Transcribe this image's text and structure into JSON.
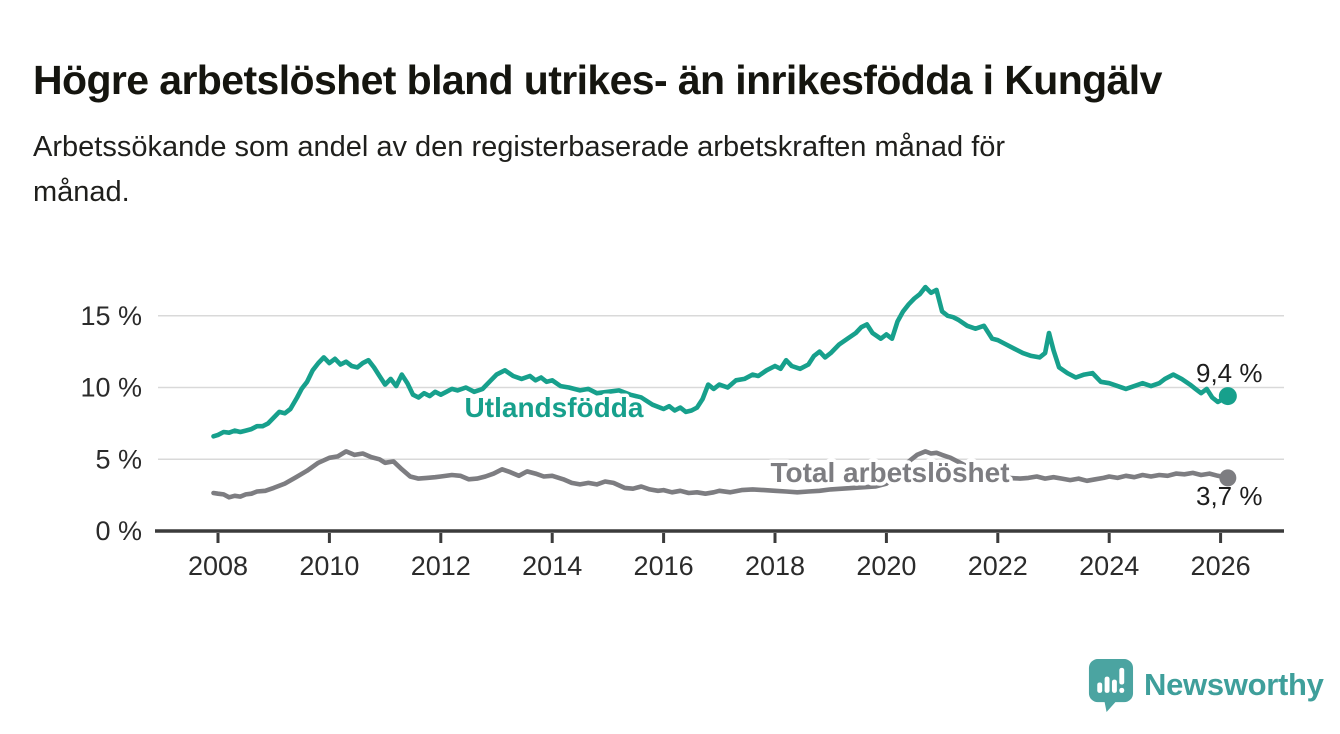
{
  "header": {
    "title": "Högre arbetslöshet bland utrikes- än inrikesfödda i Kungälv",
    "subtitle_lines": [
      "Arbetssökande som andel av den registerbaserade arbetskraften månad för",
      "månad."
    ]
  },
  "branding": {
    "logo_text": "Newsworthy",
    "logo_icon": "bar-chart-speech-bubble-icon",
    "logo_text_color": "#3f9f9b",
    "logo_icon_color": "#4ba4a1"
  },
  "colors": {
    "series_foreign_born": "#17a08c",
    "series_total": "#7d7d81",
    "gridline": "#d9d9d9",
    "axis": "#3b3b3b",
    "tick_label": "#2b2b2b",
    "value_label": "#1d1d1d"
  },
  "chart_data": {
    "type": "line",
    "title": "",
    "xlabel": "",
    "ylabel": "",
    "grid": true,
    "legend": "inline-labels",
    "x_ticks": [
      2008,
      2010,
      2012,
      2014,
      2016,
      2018,
      2020,
      2022,
      2024,
      2026
    ],
    "y_ticks": [
      0,
      5,
      10,
      15
    ],
    "y_tick_suffix": " %",
    "ylim": [
      0,
      17.8
    ],
    "xlim": [
      2006.9,
      2027.1
    ],
    "series": [
      {
        "name": "Utlandsfödda",
        "color": "#17a08c",
        "end_value_label": "9,4 %",
        "end_value": 9.4,
        "points": [
          [
            2007.92,
            6.6
          ],
          [
            2008.0,
            6.7
          ],
          [
            2008.1,
            6.9
          ],
          [
            2008.2,
            6.85
          ],
          [
            2008.3,
            7.0
          ],
          [
            2008.4,
            6.9
          ],
          [
            2008.5,
            7.0
          ],
          [
            2008.6,
            7.1
          ],
          [
            2008.7,
            7.3
          ],
          [
            2008.8,
            7.3
          ],
          [
            2008.9,
            7.5
          ],
          [
            2009.0,
            7.9
          ],
          [
            2009.1,
            8.3
          ],
          [
            2009.2,
            8.2
          ],
          [
            2009.3,
            8.5
          ],
          [
            2009.42,
            9.3
          ],
          [
            2009.5,
            9.9
          ],
          [
            2009.6,
            10.4
          ],
          [
            2009.7,
            11.2
          ],
          [
            2009.8,
            11.7
          ],
          [
            2009.9,
            12.1
          ],
          [
            2010.0,
            11.7
          ],
          [
            2010.1,
            12.0
          ],
          [
            2010.2,
            11.6
          ],
          [
            2010.3,
            11.8
          ],
          [
            2010.4,
            11.5
          ],
          [
            2010.5,
            11.4
          ],
          [
            2010.6,
            11.7
          ],
          [
            2010.7,
            11.9
          ],
          [
            2010.8,
            11.4
          ],
          [
            2010.9,
            10.8
          ],
          [
            2011.0,
            10.2
          ],
          [
            2011.1,
            10.6
          ],
          [
            2011.2,
            10.1
          ],
          [
            2011.3,
            10.9
          ],
          [
            2011.4,
            10.3
          ],
          [
            2011.5,
            9.5
          ],
          [
            2011.6,
            9.3
          ],
          [
            2011.7,
            9.6
          ],
          [
            2011.8,
            9.4
          ],
          [
            2011.9,
            9.7
          ],
          [
            2012.0,
            9.5
          ],
          [
            2012.1,
            9.7
          ],
          [
            2012.2,
            9.9
          ],
          [
            2012.3,
            9.8
          ],
          [
            2012.45,
            10.0
          ],
          [
            2012.6,
            9.7
          ],
          [
            2012.75,
            9.9
          ],
          [
            2012.9,
            10.5
          ],
          [
            2013.0,
            10.9
          ],
          [
            2013.15,
            11.2
          ],
          [
            2013.3,
            10.8
          ],
          [
            2013.45,
            10.6
          ],
          [
            2013.6,
            10.8
          ],
          [
            2013.7,
            10.5
          ],
          [
            2013.8,
            10.7
          ],
          [
            2013.9,
            10.4
          ],
          [
            2014.0,
            10.5
          ],
          [
            2014.15,
            10.1
          ],
          [
            2014.3,
            10.0
          ],
          [
            2014.5,
            9.8
          ],
          [
            2014.65,
            9.9
          ],
          [
            2014.8,
            9.6
          ],
          [
            2015.0,
            9.7
          ],
          [
            2015.2,
            9.8
          ],
          [
            2015.4,
            9.5
          ],
          [
            2015.6,
            9.3
          ],
          [
            2015.8,
            8.8
          ],
          [
            2016.0,
            8.5
          ],
          [
            2016.1,
            8.7
          ],
          [
            2016.2,
            8.4
          ],
          [
            2016.3,
            8.6
          ],
          [
            2016.4,
            8.3
          ],
          [
            2016.5,
            8.4
          ],
          [
            2016.6,
            8.6
          ],
          [
            2016.7,
            9.2
          ],
          [
            2016.8,
            10.2
          ],
          [
            2016.9,
            9.9
          ],
          [
            2017.0,
            10.2
          ],
          [
            2017.15,
            10.0
          ],
          [
            2017.3,
            10.5
          ],
          [
            2017.45,
            10.6
          ],
          [
            2017.6,
            10.9
          ],
          [
            2017.7,
            10.8
          ],
          [
            2017.85,
            11.2
          ],
          [
            2018.0,
            11.5
          ],
          [
            2018.1,
            11.3
          ],
          [
            2018.2,
            11.9
          ],
          [
            2018.3,
            11.5
          ],
          [
            2018.45,
            11.3
          ],
          [
            2018.6,
            11.6
          ],
          [
            2018.7,
            12.2
          ],
          [
            2018.8,
            12.5
          ],
          [
            2018.9,
            12.1
          ],
          [
            2019.0,
            12.4
          ],
          [
            2019.15,
            13.0
          ],
          [
            2019.3,
            13.4
          ],
          [
            2019.45,
            13.8
          ],
          [
            2019.55,
            14.2
          ],
          [
            2019.65,
            14.4
          ],
          [
            2019.75,
            13.8
          ],
          [
            2019.9,
            13.4
          ],
          [
            2020.0,
            13.7
          ],
          [
            2020.1,
            13.4
          ],
          [
            2020.2,
            14.6
          ],
          [
            2020.3,
            15.3
          ],
          [
            2020.4,
            15.8
          ],
          [
            2020.5,
            16.2
          ],
          [
            2020.6,
            16.5
          ],
          [
            2020.7,
            17.0
          ],
          [
            2020.8,
            16.6
          ],
          [
            2020.9,
            16.8
          ],
          [
            2021.0,
            15.3
          ],
          [
            2021.1,
            15.0
          ],
          [
            2021.2,
            14.9
          ],
          [
            2021.3,
            14.7
          ],
          [
            2021.45,
            14.3
          ],
          [
            2021.6,
            14.1
          ],
          [
            2021.75,
            14.3
          ],
          [
            2021.9,
            13.4
          ],
          [
            2022.0,
            13.3
          ],
          [
            2022.15,
            13.0
          ],
          [
            2022.3,
            12.7
          ],
          [
            2022.45,
            12.4
          ],
          [
            2022.6,
            12.2
          ],
          [
            2022.75,
            12.1
          ],
          [
            2022.85,
            12.4
          ],
          [
            2022.92,
            13.8
          ],
          [
            2023.0,
            12.6
          ],
          [
            2023.1,
            11.4
          ],
          [
            2023.25,
            11.0
          ],
          [
            2023.4,
            10.7
          ],
          [
            2023.55,
            10.9
          ],
          [
            2023.7,
            11.0
          ],
          [
            2023.85,
            10.4
          ],
          [
            2024.0,
            10.3
          ],
          [
            2024.15,
            10.1
          ],
          [
            2024.3,
            9.9
          ],
          [
            2024.45,
            10.1
          ],
          [
            2024.6,
            10.3
          ],
          [
            2024.75,
            10.1
          ],
          [
            2024.9,
            10.3
          ],
          [
            2025.0,
            10.6
          ],
          [
            2025.15,
            10.9
          ],
          [
            2025.3,
            10.6
          ],
          [
            2025.45,
            10.2
          ],
          [
            2025.55,
            9.9
          ],
          [
            2025.65,
            9.6
          ],
          [
            2025.75,
            9.9
          ],
          [
            2025.85,
            9.3
          ],
          [
            2025.95,
            9.0
          ],
          [
            2026.05,
            9.2
          ],
          [
            2026.13,
            9.4
          ]
        ]
      },
      {
        "name": "Total arbetslöshet",
        "color": "#7d7d81",
        "end_value_label": "3,7 %",
        "end_value": 3.7,
        "points": [
          [
            2007.92,
            2.65
          ],
          [
            2008.0,
            2.6
          ],
          [
            2008.1,
            2.55
          ],
          [
            2008.2,
            2.35
          ],
          [
            2008.3,
            2.45
          ],
          [
            2008.4,
            2.4
          ],
          [
            2008.5,
            2.55
          ],
          [
            2008.6,
            2.6
          ],
          [
            2008.7,
            2.75
          ],
          [
            2008.85,
            2.8
          ],
          [
            2009.0,
            3.0
          ],
          [
            2009.2,
            3.3
          ],
          [
            2009.4,
            3.75
          ],
          [
            2009.6,
            4.2
          ],
          [
            2009.8,
            4.75
          ],
          [
            2010.0,
            5.1
          ],
          [
            2010.15,
            5.2
          ],
          [
            2010.3,
            5.55
          ],
          [
            2010.45,
            5.3
          ],
          [
            2010.6,
            5.4
          ],
          [
            2010.75,
            5.15
          ],
          [
            2010.9,
            5.0
          ],
          [
            2011.0,
            4.75
          ],
          [
            2011.15,
            4.85
          ],
          [
            2011.3,
            4.3
          ],
          [
            2011.45,
            3.8
          ],
          [
            2011.6,
            3.65
          ],
          [
            2011.75,
            3.7
          ],
          [
            2011.9,
            3.75
          ],
          [
            2012.0,
            3.8
          ],
          [
            2012.2,
            3.9
          ],
          [
            2012.35,
            3.85
          ],
          [
            2012.5,
            3.6
          ],
          [
            2012.65,
            3.65
          ],
          [
            2012.8,
            3.8
          ],
          [
            2012.95,
            4.0
          ],
          [
            2013.1,
            4.3
          ],
          [
            2013.25,
            4.1
          ],
          [
            2013.4,
            3.85
          ],
          [
            2013.55,
            4.15
          ],
          [
            2013.7,
            4.0
          ],
          [
            2013.85,
            3.8
          ],
          [
            2014.0,
            3.85
          ],
          [
            2014.2,
            3.6
          ],
          [
            2014.35,
            3.35
          ],
          [
            2014.5,
            3.25
          ],
          [
            2014.65,
            3.35
          ],
          [
            2014.8,
            3.25
          ],
          [
            2014.95,
            3.45
          ],
          [
            2015.1,
            3.35
          ],
          [
            2015.3,
            3.0
          ],
          [
            2015.45,
            2.95
          ],
          [
            2015.6,
            3.1
          ],
          [
            2015.75,
            2.9
          ],
          [
            2015.9,
            2.8
          ],
          [
            2016.0,
            2.85
          ],
          [
            2016.15,
            2.7
          ],
          [
            2016.3,
            2.8
          ],
          [
            2016.45,
            2.65
          ],
          [
            2016.6,
            2.7
          ],
          [
            2016.75,
            2.6
          ],
          [
            2016.9,
            2.7
          ],
          [
            2017.0,
            2.8
          ],
          [
            2017.2,
            2.7
          ],
          [
            2017.4,
            2.85
          ],
          [
            2017.6,
            2.9
          ],
          [
            2017.8,
            2.85
          ],
          [
            2018.0,
            2.8
          ],
          [
            2018.2,
            2.75
          ],
          [
            2018.4,
            2.7
          ],
          [
            2018.6,
            2.75
          ],
          [
            2018.8,
            2.8
          ],
          [
            2019.0,
            2.9
          ],
          [
            2019.2,
            2.95
          ],
          [
            2019.4,
            3.0
          ],
          [
            2019.6,
            3.05
          ],
          [
            2019.8,
            3.1
          ],
          [
            2020.0,
            3.3
          ],
          [
            2020.15,
            3.9
          ],
          [
            2020.3,
            4.5
          ],
          [
            2020.45,
            5.0
          ],
          [
            2020.55,
            5.3
          ],
          [
            2020.7,
            5.55
          ],
          [
            2020.8,
            5.4
          ],
          [
            2020.9,
            5.45
          ],
          [
            2021.0,
            5.3
          ],
          [
            2021.15,
            5.1
          ],
          [
            2021.3,
            4.8
          ],
          [
            2021.5,
            4.4
          ],
          [
            2021.7,
            4.1
          ],
          [
            2021.85,
            3.95
          ],
          [
            2022.0,
            3.8
          ],
          [
            2022.2,
            3.7
          ],
          [
            2022.4,
            3.65
          ],
          [
            2022.55,
            3.7
          ],
          [
            2022.7,
            3.8
          ],
          [
            2022.85,
            3.65
          ],
          [
            2023.0,
            3.75
          ],
          [
            2023.15,
            3.65
          ],
          [
            2023.3,
            3.55
          ],
          [
            2023.45,
            3.65
          ],
          [
            2023.6,
            3.5
          ],
          [
            2023.75,
            3.6
          ],
          [
            2023.9,
            3.7
          ],
          [
            2024.0,
            3.8
          ],
          [
            2024.15,
            3.7
          ],
          [
            2024.3,
            3.85
          ],
          [
            2024.45,
            3.75
          ],
          [
            2024.6,
            3.9
          ],
          [
            2024.75,
            3.8
          ],
          [
            2024.9,
            3.9
          ],
          [
            2025.05,
            3.85
          ],
          [
            2025.2,
            4.0
          ],
          [
            2025.35,
            3.95
          ],
          [
            2025.5,
            4.05
          ],
          [
            2025.65,
            3.9
          ],
          [
            2025.8,
            4.0
          ],
          [
            2025.95,
            3.85
          ],
          [
            2026.13,
            3.7
          ]
        ]
      }
    ]
  }
}
